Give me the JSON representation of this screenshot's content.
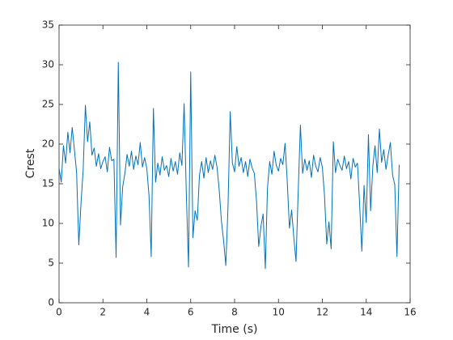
{
  "chart_data": {
    "type": "line",
    "xlabel": "Time (s)",
    "ylabel": "Crest",
    "xlim": [
      0,
      16
    ],
    "xticks": [
      0,
      2,
      4,
      6,
      8,
      10,
      12,
      14,
      16
    ],
    "ylim": [
      0,
      35
    ],
    "yticks": [
      0,
      5,
      10,
      15,
      20,
      25,
      30,
      35
    ],
    "color": "#0072bd",
    "x": [
      0,
      0.1,
      0.2,
      0.3,
      0.4,
      0.5,
      0.6,
      0.7,
      0.8,
      0.9,
      1,
      1.1,
      1.2,
      1.3,
      1.4,
      1.5,
      1.6,
      1.7,
      1.8,
      1.9,
      2,
      2.1,
      2.2,
      2.3,
      2.4,
      2.5,
      2.6,
      2.7,
      2.8,
      2.9,
      3,
      3.1,
      3.2,
      3.3,
      3.4,
      3.5,
      3.6,
      3.7,
      3.8,
      3.9,
      4,
      4.1,
      4.2,
      4.3,
      4.4,
      4.5,
      4.6,
      4.7,
      4.8,
      4.9,
      5,
      5.1,
      5.2,
      5.3,
      5.4,
      5.5,
      5.6,
      5.7,
      5.8,
      5.9,
      6,
      6.1,
      6.2,
      6.3,
      6.4,
      6.5,
      6.6,
      6.7,
      6.8,
      6.9,
      7,
      7.1,
      7.2,
      7.3,
      7.4,
      7.5,
      7.6,
      7.7,
      7.8,
      7.9,
      8,
      8.1,
      8.2,
      8.3,
      8.4,
      8.5,
      8.6,
      8.7,
      8.8,
      8.9,
      9,
      9.1,
      9.2,
      9.3,
      9.4,
      9.5,
      9.6,
      9.7,
      9.8,
      9.9,
      10,
      10.1,
      10.2,
      10.3,
      10.4,
      10.5,
      10.6,
      10.7,
      10.8,
      10.9,
      11,
      11.1,
      11.2,
      11.3,
      11.4,
      11.5,
      11.6,
      11.7,
      11.8,
      11.9,
      12,
      12.1,
      12.2,
      12.3,
      12.4,
      12.5,
      12.6,
      12.7,
      12.8,
      12.9,
      13,
      13.1,
      13.2,
      13.3,
      13.4,
      13.5,
      13.6,
      13.7,
      13.8,
      13.9,
      14,
      14.1,
      14.2,
      14.3,
      14.4,
      14.5,
      14.6,
      14.7,
      14.8,
      14.9,
      15,
      15.1,
      15.2,
      15.3,
      15.4,
      15.5
    ],
    "values": [
      17,
      15.2,
      19.8,
      17.6,
      21.5,
      18.9,
      22.1,
      19.3,
      16.4,
      7.3,
      12.5,
      16.8,
      24.9,
      20.3,
      22.8,
      18.6,
      19.5,
      17.2,
      18.8,
      16.9,
      17.8,
      18.4,
      16.5,
      19.6,
      17.9,
      18.1,
      5.7,
      30.3,
      9.8,
      14.6,
      16.3,
      18.7,
      17.2,
      19.1,
      16.8,
      18.5,
      17.4,
      20.2,
      17.1,
      18.3,
      16.9,
      13.5,
      5.8,
      24.5,
      15.2,
      17.6,
      16.1,
      18.4,
      16.7,
      17.3,
      15.9,
      18.2,
      16.6,
      17.8,
      16.2,
      18.9,
      17.3,
      25.1,
      13.8,
      4.5,
      29.1,
      8.2,
      11.6,
      10.4,
      16.1,
      17.8,
      15.7,
      18.3,
      16.4,
      17.9,
      16.8,
      18.6,
      17.1,
      14.2,
      10.3,
      7.8,
      4.7,
      12.1,
      24.1,
      17.6,
      16.5,
      19.7,
      17.2,
      18.3,
      16.4,
      17.8,
      15.9,
      18.1,
      17,
      16.3,
      12.8,
      7.1,
      9.6,
      11.2,
      4.3,
      14.5,
      17.8,
      16.2,
      19.1,
      17.3,
      16.6,
      18.2,
      17.4,
      20.1,
      15.3,
      9.4,
      11.7,
      8.2,
      5.2,
      14.1,
      22.4,
      16.3,
      18.1,
      16.7,
      17.9,
      15.8,
      18.6,
      17.2,
      16.5,
      18.3,
      17.1,
      13.4,
      7.4,
      10.2,
      6.8,
      20.3,
      16.4,
      18.1,
      17.3,
      16.7,
      18.5,
      16.9,
      17.8,
      15.6,
      18.2,
      17.1,
      17.6,
      12.3,
      6.5,
      14.8,
      10.1,
      21.2,
      11.6,
      17.2,
      19.8,
      16.4,
      21.9,
      17.7,
      19.3,
      16.8,
      18.6,
      20.2,
      16.1,
      14.9,
      5.8,
      17.4
    ]
  }
}
